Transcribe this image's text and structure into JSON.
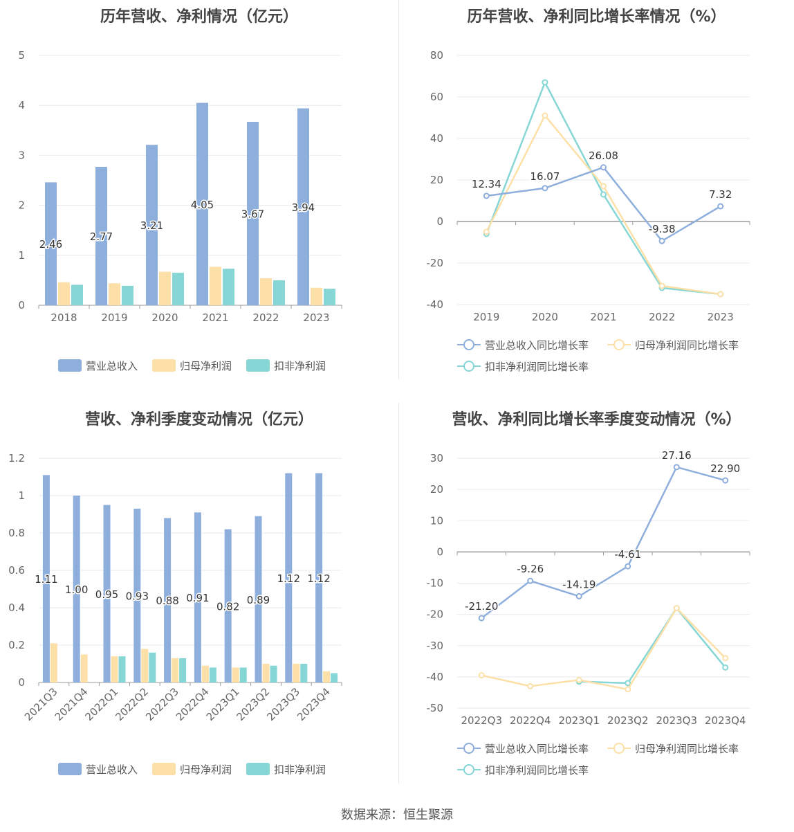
{
  "colors": {
    "revenue": "#8eaedc",
    "net_profit": "#fde0a8",
    "deducted_net_profit": "#86d6d6",
    "axis": "#999999",
    "grid": "#e6e9f0"
  },
  "legend": {
    "revenue": "营业总收入",
    "net_profit": "归母净利润",
    "deducted_net_profit": "扣非净利润",
    "revenue_growth": "营业总收入同比增长率",
    "net_profit_growth": "归母净利润同比增长率",
    "deducted_growth": "扣非净利润同比增长率"
  },
  "source": "数据来源：恒生聚源",
  "chart_data": [
    {
      "type": "bar",
      "title": "历年营收、净利情况（亿元）",
      "categories": [
        "2018",
        "2019",
        "2020",
        "2021",
        "2022",
        "2023"
      ],
      "ylim": [
        0,
        5
      ],
      "yticks": [
        0,
        1,
        2,
        3,
        4,
        5
      ],
      "series": [
        {
          "name": "营业总收入",
          "values": [
            2.46,
            2.77,
            3.21,
            4.05,
            3.67,
            3.94
          ],
          "labels": [
            "2.46",
            "2.77",
            "3.21",
            "4.05",
            "3.67",
            "3.94"
          ]
        },
        {
          "name": "归母净利润",
          "values": [
            0.46,
            0.44,
            0.67,
            0.77,
            0.54,
            0.35
          ]
        },
        {
          "name": "扣非净利润",
          "values": [
            0.41,
            0.39,
            0.65,
            0.73,
            0.5,
            0.33
          ]
        }
      ]
    },
    {
      "type": "line",
      "title": "历年营收、净利同比增长率情况（%）",
      "categories": [
        "2019",
        "2020",
        "2021",
        "2022",
        "2023"
      ],
      "ylim": [
        -40,
        80
      ],
      "yticks": [
        -40,
        -20,
        0,
        20,
        40,
        60,
        80
      ],
      "series": [
        {
          "name": "营业总收入同比增长率",
          "values": [
            12.34,
            16.07,
            26.08,
            -9.38,
            7.32
          ],
          "labels": [
            "12.34",
            "16.07",
            "26.08",
            "-9.38",
            "7.32"
          ]
        },
        {
          "name": "归母净利润同比增长率",
          "values": [
            -5,
            51,
            17,
            -31,
            -35
          ]
        },
        {
          "name": "扣非净利润同比增长率",
          "values": [
            -6,
            67,
            13,
            -32,
            -35
          ]
        }
      ]
    },
    {
      "type": "bar",
      "title": "营收、净利季度变动情况（亿元）",
      "categories": [
        "2021Q3",
        "2021Q4",
        "2022Q1",
        "2022Q2",
        "2022Q3",
        "2022Q4",
        "2023Q1",
        "2023Q2",
        "2023Q3",
        "2023Q4"
      ],
      "ylim": [
        0,
        1.2
      ],
      "yticks": [
        0,
        0.2,
        0.4,
        0.6,
        0.8,
        1,
        1.2
      ],
      "series": [
        {
          "name": "营业总收入",
          "values": [
            1.11,
            1.0,
            0.95,
            0.93,
            0.88,
            0.91,
            0.82,
            0.89,
            1.12,
            1.12
          ],
          "labels": [
            "1.11",
            "1.00",
            "0.95",
            "0.93",
            "0.88",
            "0.91",
            "0.82",
            "0.89",
            "1.12",
            "1.12"
          ]
        },
        {
          "name": "归母净利润",
          "values": [
            0.21,
            0.15,
            0.14,
            0.18,
            0.13,
            0.09,
            0.08,
            0.1,
            0.1,
            0.06
          ]
        },
        {
          "name": "扣非净利润",
          "values": [
            null,
            null,
            0.14,
            0.16,
            0.13,
            0.08,
            0.08,
            0.09,
            0.1,
            0.05
          ]
        }
      ]
    },
    {
      "type": "line",
      "title": "营收、净利同比增长率季度变动情况（%）",
      "categories": [
        "2022Q3",
        "2022Q4",
        "2023Q1",
        "2023Q2",
        "2023Q3",
        "2023Q4"
      ],
      "ylim": [
        -50,
        30
      ],
      "yticks": [
        -50,
        -40,
        -30,
        -20,
        -10,
        0,
        10,
        20,
        30
      ],
      "series": [
        {
          "name": "营业总收入同比增长率",
          "values": [
            -21.2,
            -9.26,
            -14.19,
            -4.61,
            27.16,
            22.9
          ],
          "labels": [
            "-21.20",
            "-9.26",
            "-14.19",
            "-4.61",
            "27.16",
            "22.90"
          ]
        },
        {
          "name": "归母净利润同比增长率",
          "values": [
            -39.5,
            -43,
            -41,
            -44,
            -18,
            -34
          ]
        },
        {
          "name": "扣非净利润同比增长率",
          "values": [
            null,
            null,
            -41.5,
            -42,
            -18,
            -37
          ]
        }
      ]
    }
  ]
}
